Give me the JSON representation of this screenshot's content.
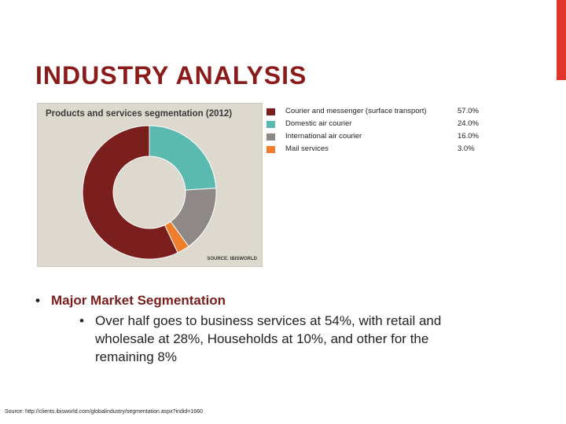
{
  "slide": {
    "title": "INDUSTRY ANALYSIS",
    "accent_color": "#e0352b",
    "title_color": "#8b1a1a"
  },
  "chart_data": {
    "type": "pie",
    "title": "Products and services segmentation (2012)",
    "source": "SOURCE: IBISWORLD",
    "categories": [
      "Courier and messenger (surface transport)",
      "Domestic air courier",
      "International air courier",
      "Mail services"
    ],
    "values": [
      57.0,
      24.0,
      16.0,
      3.0
    ],
    "value_labels": [
      "57.0%",
      "24.0%",
      "16.0%",
      "3.0%"
    ],
    "colors": [
      "#7a1e1e",
      "#5bbab0",
      "#8e8886",
      "#ef7d2c"
    ],
    "donut": true,
    "legend_position": "right"
  },
  "content": {
    "bullet_main": "Major Market Segmentation",
    "bullet_sub": "Over half goes to business services at 54%, with retail and wholesale at 28%, Households at 10%, and other for the remaining 8%"
  },
  "footnote": "Source: http://clients.ibisworld.com/globalindustry/segmentation.aspx?indid=1660"
}
